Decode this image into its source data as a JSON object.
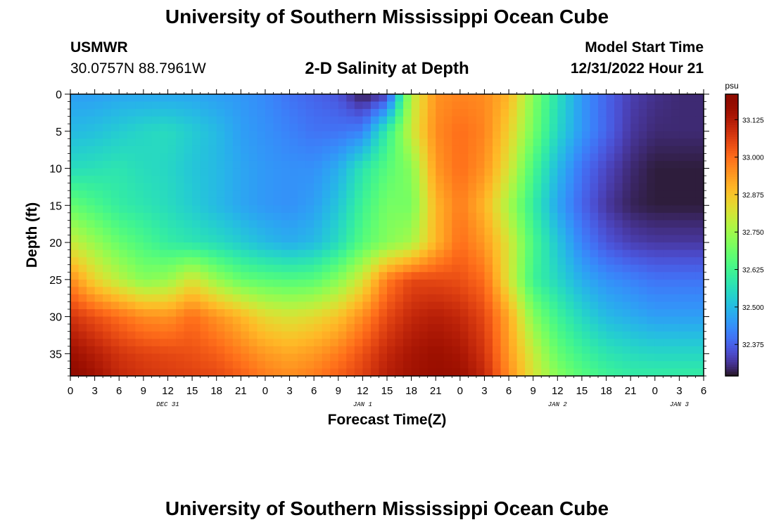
{
  "page": {
    "title": "University of Southern Mississippi Ocean Cube",
    "footer_title": "University of Southern Mississippi Ocean Cube",
    "station": "USMWR",
    "coords": "30.0757N  88.7961W",
    "subtitle": "2-D Salinity at Depth",
    "model_start_label": "Model Start Time",
    "model_start_value": "12/31/2022 Hour 21"
  },
  "chart_data": {
    "type": "heatmap",
    "title": "2-D Salinity at Depth",
    "xlabel": "Forecast Time(Z)",
    "ylabel": "Depth (ft)",
    "x_hours_range": [
      0,
      78
    ],
    "x_tick_labels": [
      "0",
      "3",
      "6",
      "9",
      "12",
      "15",
      "18",
      "21",
      "0",
      "3",
      "6",
      "9",
      "12",
      "15",
      "18",
      "21",
      "0",
      "3",
      "6",
      "9",
      "12",
      "15",
      "18",
      "21",
      "0",
      "3",
      "6"
    ],
    "date_labels": [
      {
        "hour": 12,
        "text": "DEC 31"
      },
      {
        "hour": 36,
        "text": "JAN 1"
      },
      {
        "hour": 60,
        "text": "JAN 2"
      },
      {
        "hour": 75,
        "text": "JAN 3"
      }
    ],
    "y_range": [
      0,
      38
    ],
    "y_inverted": true,
    "y_ticks": [
      0,
      5,
      10,
      15,
      20,
      25,
      30,
      35
    ],
    "colorbar": {
      "unit": "psu",
      "range": [
        32.27,
        33.21
      ],
      "ticks": [
        33.125,
        33.0,
        32.875,
        32.75,
        32.625,
        32.5,
        32.375
      ],
      "tick_labels": [
        "33.125",
        "33.000",
        "32.875",
        "32.750",
        "32.625",
        "32.500",
        "32.375"
      ],
      "colormap": "turbo"
    },
    "grid": false,
    "depth_rows": [
      0,
      5,
      10,
      15,
      20,
      25,
      30,
      35,
      38
    ],
    "time_cols": [
      0,
      3,
      6,
      9,
      12,
      15,
      18,
      21,
      24,
      27,
      30,
      33,
      36,
      39,
      42,
      45,
      48,
      51,
      54,
      57,
      60,
      63,
      66,
      69,
      72,
      75,
      78
    ],
    "values": [
      [
        32.46,
        32.46,
        32.47,
        32.47,
        32.47,
        32.47,
        32.46,
        32.45,
        32.43,
        32.4,
        32.38,
        32.36,
        32.28,
        32.33,
        32.78,
        32.95,
        32.97,
        32.96,
        32.9,
        32.72,
        32.57,
        32.45,
        32.38,
        32.33,
        32.31,
        32.3,
        32.3
      ],
      [
        32.5,
        32.51,
        32.53,
        32.55,
        32.56,
        32.53,
        32.5,
        32.46,
        32.44,
        32.42,
        32.4,
        32.4,
        32.42,
        32.6,
        32.8,
        32.96,
        33.0,
        32.97,
        32.86,
        32.7,
        32.55,
        32.45,
        32.38,
        32.32,
        32.3,
        32.3,
        32.3
      ],
      [
        32.56,
        32.57,
        32.58,
        32.56,
        32.55,
        32.52,
        32.5,
        32.47,
        32.45,
        32.44,
        32.44,
        32.48,
        32.58,
        32.66,
        32.72,
        32.94,
        33.0,
        32.95,
        32.82,
        32.64,
        32.5,
        32.4,
        32.34,
        32.3,
        32.28,
        32.28,
        32.28
      ],
      [
        32.68,
        32.64,
        32.6,
        32.58,
        32.56,
        32.53,
        32.5,
        32.47,
        32.45,
        32.44,
        32.46,
        32.52,
        32.62,
        32.7,
        32.7,
        32.9,
        32.98,
        32.9,
        32.76,
        32.6,
        32.47,
        32.38,
        32.32,
        32.29,
        32.28,
        32.28,
        32.28
      ],
      [
        32.8,
        32.74,
        32.68,
        32.64,
        32.6,
        32.58,
        32.56,
        32.53,
        32.5,
        32.48,
        32.5,
        32.56,
        32.66,
        32.72,
        32.76,
        32.9,
        33.0,
        32.94,
        32.82,
        32.64,
        32.52,
        32.42,
        32.36,
        32.33,
        32.32,
        32.32,
        32.32
      ],
      [
        32.96,
        32.85,
        32.78,
        32.72,
        32.74,
        32.82,
        32.74,
        32.68,
        32.66,
        32.65,
        32.66,
        32.72,
        32.82,
        32.98,
        33.05,
        33.05,
        33.04,
        33.0,
        32.82,
        32.62,
        32.55,
        32.48,
        32.44,
        32.42,
        32.4,
        32.4,
        32.4
      ],
      [
        33.08,
        33.04,
        33.0,
        32.96,
        32.95,
        33.0,
        32.95,
        32.9,
        32.84,
        32.82,
        32.84,
        32.88,
        32.96,
        33.05,
        33.1,
        33.12,
        33.1,
        33.05,
        32.92,
        32.72,
        32.62,
        32.55,
        32.5,
        32.48,
        32.46,
        32.46,
        32.46
      ],
      [
        33.16,
        33.12,
        33.08,
        33.06,
        33.05,
        33.04,
        33.02,
        32.98,
        32.94,
        32.92,
        32.94,
        32.98,
        33.04,
        33.1,
        33.14,
        33.16,
        33.14,
        33.08,
        32.94,
        32.8,
        32.68,
        32.62,
        32.58,
        32.56,
        32.55,
        32.55,
        32.55
      ],
      [
        33.2,
        33.15,
        33.1,
        33.08,
        33.07,
        33.06,
        33.05,
        33.02,
        32.98,
        32.96,
        32.98,
        33.02,
        33.06,
        33.12,
        33.15,
        33.17,
        33.16,
        33.1,
        32.96,
        32.82,
        32.72,
        32.66,
        32.62,
        32.6,
        32.6,
        32.6,
        32.6
      ]
    ]
  }
}
